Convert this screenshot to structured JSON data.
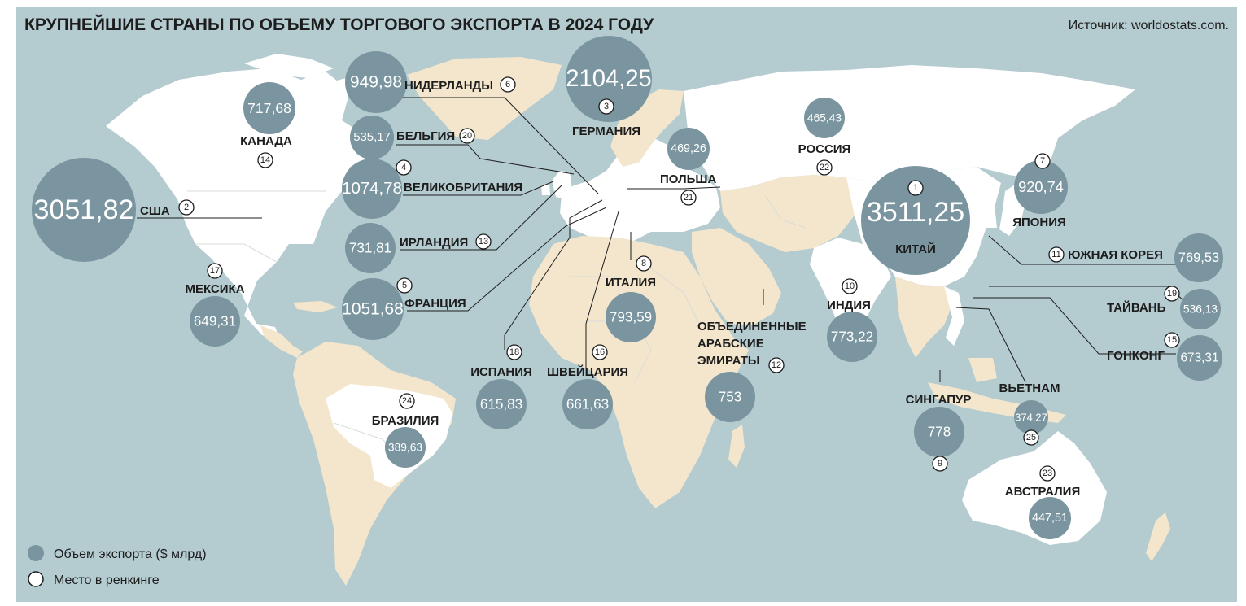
{
  "title": "КРУПНЕЙШИЕ СТРАНЫ ПО ОБЪЕМУ ТОРГОВОГО ЭКСПОРТА В 2024 ГОДУ",
  "source": "Источник: worldostats.com.",
  "legend": {
    "export_volume": "Объем экспорта ($ млрд)",
    "rank": "Место в ренкинге"
  },
  "colors": {
    "ocean": "#b4cbd0",
    "land_other": "#f4e6cc",
    "land_top": "#ffffff",
    "bubble": "#7a959f",
    "border": "#c9d4d6",
    "text": "#1d1d1d"
  },
  "countries": [
    {
      "name": "США",
      "value": "3051,82",
      "rank": "2"
    },
    {
      "name": "КАНАДА",
      "value": "717,68",
      "rank": "14"
    },
    {
      "name": "МЕКСИКА",
      "value": "649,31",
      "rank": "17"
    },
    {
      "name": "НИДЕРЛАНДЫ",
      "value": "949,98",
      "rank": "6"
    },
    {
      "name": "БЕЛЬГИЯ",
      "value": "535,17",
      "rank": "20"
    },
    {
      "name": "ВЕЛИКОБРИТАНИЯ",
      "value": "1074,78",
      "rank": "4"
    },
    {
      "name": "ИРЛАНДИЯ",
      "value": "731,81",
      "rank": "13"
    },
    {
      "name": "ФРАНЦИЯ",
      "value": "1051,68",
      "rank": "5"
    },
    {
      "name": "ГЕРМАНИЯ",
      "value": "2104,25",
      "rank": "3"
    },
    {
      "name": "ПОЛЬША",
      "value": "469,26",
      "rank": "21"
    },
    {
      "name": "РОССИЯ",
      "value": "465,43",
      "rank": "22"
    },
    {
      "name": "ИТАЛИЯ",
      "value": "793,59",
      "rank": "8"
    },
    {
      "name": "ИСПАНИЯ",
      "value": "615,83",
      "rank": "18"
    },
    {
      "name": "ШВЕЙЦАРИЯ",
      "value": "661,63",
      "rank": "16"
    },
    {
      "name": "ОБЪЕДИНЕННЫЕ АРАБСКИЕ ЭМИРАТЫ",
      "name_lines": [
        "ОБЪЕДИНЕННЫЕ",
        "АРАБСКИЕ",
        "ЭМИРАТЫ"
      ],
      "value": "753",
      "rank": "12"
    },
    {
      "name": "ИНДИЯ",
      "value": "773,22",
      "rank": "10"
    },
    {
      "name": "КИТАЙ",
      "value": "3511,25",
      "rank": "1"
    },
    {
      "name": "ЯПОНИЯ",
      "value": "920,74",
      "rank": "7"
    },
    {
      "name": "ЮЖНАЯ КОРЕЯ",
      "value": "769,53",
      "rank": "11"
    },
    {
      "name": "ТАЙВАНЬ",
      "value": "536,13",
      "rank": "19"
    },
    {
      "name": "ГОНКОНГ",
      "value": "673,31",
      "rank": "15"
    },
    {
      "name": "ВЬЕТНАМ",
      "value": "374,27",
      "rank": "25"
    },
    {
      "name": "СИНГАПУР",
      "value": "778",
      "rank": "9"
    },
    {
      "name": "АВСТРАЛИЯ",
      "value": "447,51",
      "rank": "23"
    },
    {
      "name": "БРАЗИЛИЯ",
      "value": "389,63",
      "rank": "24"
    }
  ]
}
